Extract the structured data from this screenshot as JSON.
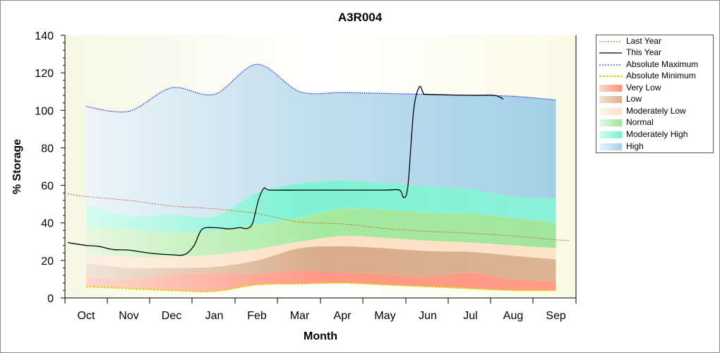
{
  "chart_data": {
    "type": "area",
    "title": "A3R004",
    "xlabel": "Month",
    "ylabel": "% Storage",
    "ylim": [
      0,
      140
    ],
    "yticks": [
      0,
      20,
      40,
      60,
      80,
      100,
      120,
      140
    ],
    "categories": [
      "Oct",
      "Nov",
      "Dec",
      "Jan",
      "Feb",
      "Mar",
      "Apr",
      "May",
      "Jun",
      "Jul",
      "Aug",
      "Sep"
    ],
    "legend_position": "right",
    "bands": {
      "x": [
        "Oct",
        "Nov",
        "Dec",
        "Jan",
        "Feb",
        "Mar",
        "Apr",
        "May",
        "Jun",
        "Jul",
        "Aug",
        "Sep"
      ],
      "absolute_minimum": [
        6,
        5,
        4,
        3.5,
        7,
        7.5,
        8,
        7,
        6,
        5,
        4,
        4
      ],
      "very_low_top": [
        11,
        10,
        12.5,
        13,
        13,
        14.5,
        13.5,
        12.5,
        11.5,
        13.5,
        10,
        9
      ],
      "low_top": [
        18.5,
        16,
        16,
        16.5,
        20,
        26.5,
        27.5,
        26.5,
        25,
        24.5,
        22.5,
        20.5
      ],
      "moderately_low_top": [
        23.5,
        22,
        22,
        23,
        26,
        30,
        33,
        32,
        30.5,
        29.5,
        28,
        26.5
      ],
      "normal_top": [
        38,
        36.5,
        35,
        35.5,
        39,
        43,
        47.5,
        47,
        45.5,
        45,
        42.5,
        40
      ],
      "moderately_high_top": [
        50,
        43.5,
        44.5,
        43.5,
        56,
        61,
        62.5,
        61,
        59.5,
        58,
        54,
        53
      ],
      "absolute_maximum": [
        102,
        99.5,
        112,
        108.5,
        124.5,
        110,
        109.5,
        109,
        108.5,
        108,
        107.5,
        105.5
      ]
    },
    "series": [
      {
        "name": "Last Year",
        "x": [
          "Oct",
          "Nov",
          "Dec",
          "Jan",
          "Feb",
          "Mar",
          "Apr",
          "May",
          "Jun",
          "Jul",
          "Aug",
          "Sep"
        ],
        "values": [
          54,
          52,
          49,
          47.5,
          45,
          40.5,
          39.5,
          37,
          35.5,
          34.5,
          33,
          31
        ]
      },
      {
        "name": "This Year",
        "points": [
          {
            "x": "Oct",
            "y": 28
          },
          {
            "x": "Nov",
            "y": 25.5
          },
          {
            "x": "Dec",
            "y": 23
          },
          {
            "x": "Jan",
            "y": 37.5
          },
          {
            "x": "Feb",
            "y": 37
          },
          {
            "x": "Mar",
            "y": 57.5
          },
          {
            "x": "Apr",
            "y": 57.5
          },
          {
            "x": "May",
            "y": 57.5
          },
          {
            "x": "Jun",
            "y": 108.5
          },
          {
            "x": "Jul",
            "y": 108
          },
          {
            "x": "Aug",
            "y": 106
          }
        ]
      }
    ],
    "legend": [
      {
        "label": "Last Year",
        "style": "dotted-line",
        "color": "#c86428"
      },
      {
        "label": "This Year",
        "style": "line",
        "color": "#000000"
      },
      {
        "label": "Absolute Maximum",
        "style": "dotted-line",
        "color": "#1a1aff"
      },
      {
        "label": "Absolute Minimum",
        "style": "dashed-line",
        "color": "#e6d200"
      },
      {
        "label": "Very Low",
        "style": "fill",
        "color": "#ff8f7a"
      },
      {
        "label": "Low",
        "style": "fill",
        "color": "#d9b08e"
      },
      {
        "label": "Moderately Low",
        "style": "fill",
        "color": "#fde2c8"
      },
      {
        "label": "Normal",
        "style": "fill",
        "color": "#9ee89a"
      },
      {
        "label": "Moderately High",
        "style": "fill",
        "color": "#78f2d2"
      },
      {
        "label": "High",
        "style": "fill",
        "color": "#9fd0e8"
      }
    ],
    "colors": {
      "very_low": "#ff8f7a",
      "low": "#d9b08e",
      "moderately_low": "#fde2c8",
      "normal": "#9ee89a",
      "moderately_high": "#78f2d2",
      "high": "#a8d4e8",
      "last_year": "#c86428",
      "this_year": "#000000",
      "abs_max": "#1a1aff",
      "abs_min": "#e6d200"
    }
  }
}
